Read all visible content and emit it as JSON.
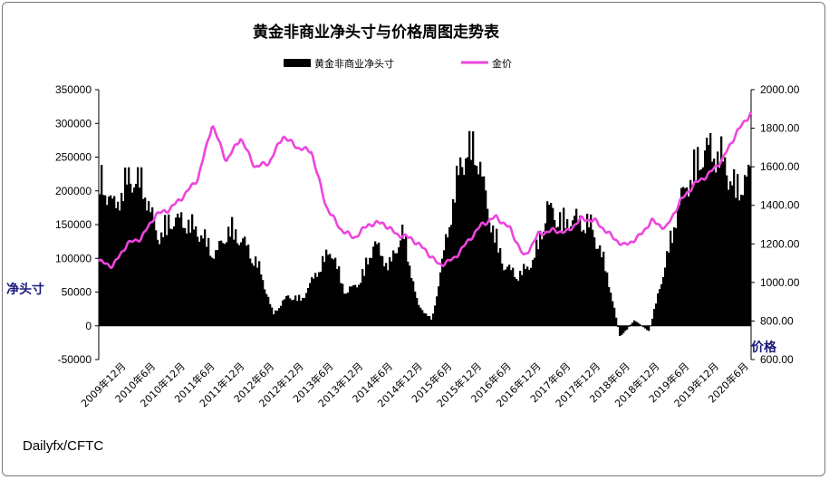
{
  "chart_data": {
    "type": "bar+line",
    "title": "黄金非商业净头寸与价格周图走势表",
    "legend": {
      "placement": "top-center",
      "entries": [
        "黄金非商业净头寸",
        "金价"
      ]
    },
    "left_axis": {
      "label": "净头寸",
      "ylim": [
        -50000,
        350000
      ],
      "ticks": [
        "350000",
        "300000",
        "250000",
        "200000",
        "150000",
        "100000",
        "50000",
        "0",
        "-50000"
      ]
    },
    "right_axis": {
      "label": "价格",
      "ylim": [
        600,
        2000
      ],
      "ticks": [
        "2000.00",
        "1800.00",
        "1600.00",
        "1400.00",
        "1200.00",
        "1000.00",
        "800.00",
        "600.00"
      ]
    },
    "x_ticks": [
      "2009年12月",
      "2010年6月",
      "2010年12月",
      "2011年6月",
      "2011年12月",
      "2012年6月",
      "2012年12月",
      "2013年6月",
      "2013年12月",
      "2014年6月",
      "2014年12月",
      "2015年6月",
      "2015年12月",
      "2016年6月",
      "2016年12月",
      "2017年6月",
      "2017年12月",
      "2018年6月",
      "2018年12月",
      "2019年6月",
      "2019年12月",
      "2020年6月"
    ],
    "series": [
      {
        "name": "黄金非商业净头寸",
        "kind": "bar",
        "color": "#000000",
        "values": [
          250000,
          200000,
          250000,
          240000,
          150000,
          180000,
          175000,
          155000,
          120000,
          165000,
          140000,
          100000,
          20000,
          50000,
          45000,
          90000,
          130000,
          55000,
          75000,
          140000,
          100000,
          160000,
          35000,
          10000,
          150000,
          280000,
          305000,
          180000,
          100000,
          85000,
          110000,
          200000,
          175000,
          180000,
          170000,
          100000,
          -20000,
          10000,
          -10000,
          90000,
          200000,
          260000,
          300000,
          285000,
          230000,
          255000
        ]
      },
      {
        "name": "金价",
        "kind": "line",
        "color": "#ee44dd",
        "values": [
          1110,
          1085,
          1200,
          1230,
          1350,
          1380,
          1450,
          1540,
          1820,
          1630,
          1750,
          1600,
          1620,
          1760,
          1700,
          1680,
          1400,
          1280,
          1230,
          1300,
          1310,
          1250,
          1230,
          1170,
          1090,
          1120,
          1210,
          1300,
          1340,
          1280,
          1130,
          1250,
          1270,
          1260,
          1330,
          1320,
          1250,
          1190,
          1230,
          1320,
          1280,
          1420,
          1510,
          1560,
          1640,
          1780,
          1880
        ]
      }
    ]
  },
  "source_label": "Dailyfx/CFTC"
}
